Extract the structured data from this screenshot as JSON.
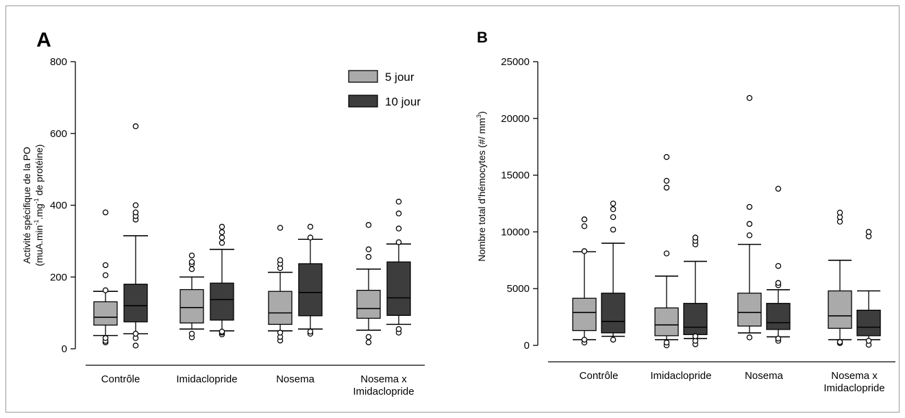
{
  "chart_data": [
    {
      "type": "boxplot",
      "panel_label": "A",
      "ylabel_line1": "Activité spécifique de la PO",
      "ylabel_line2_parts": [
        "(muA.min",
        "-1",
        ".mg",
        "-1",
        " de protéine)"
      ],
      "ylim": [
        0,
        800
      ],
      "yticks": [
        0,
        200,
        400,
        600,
        800
      ],
      "groups": [
        {
          "label": [
            "Contrôle"
          ]
        },
        {
          "label": [
            "Imidaclopride"
          ]
        },
        {
          "label": [
            "Nosema"
          ]
        },
        {
          "label": [
            "Nosema x",
            "Imidaclopride"
          ]
        }
      ],
      "legend": [
        {
          "name": "5 jour",
          "color": "#aaaaaa"
        },
        {
          "name": "10 jour",
          "color": "#3d3d3d"
        }
      ],
      "series": [
        {
          "name": "5 jour",
          "color": "#aaaaaa",
          "boxes": [
            {
              "whisker_low": 37,
              "q1": 66,
              "median": 88,
              "q3": 131,
              "whisker_high": 160,
              "outliers": [
                18,
                22,
                30,
                163,
                205,
                233,
                380
              ]
            },
            {
              "whisker_low": 55,
              "q1": 72,
              "median": 115,
              "q3": 165,
              "whisker_high": 200,
              "outliers": [
                32,
                42,
                222,
                236,
                242,
                260
              ]
            },
            {
              "whisker_low": 50,
              "q1": 68,
              "median": 100,
              "q3": 160,
              "whisker_high": 213,
              "outliers": [
                23,
                33,
                45,
                225,
                237,
                247,
                337
              ]
            },
            {
              "whisker_low": 52,
              "q1": 85,
              "median": 112,
              "q3": 163,
              "whisker_high": 222,
              "outliers": [
                18,
                33,
                256,
                277,
                345
              ]
            }
          ]
        },
        {
          "name": "10 jour",
          "color": "#3d3d3d",
          "boxes": [
            {
              "whisker_low": 42,
              "q1": 75,
              "median": 120,
              "q3": 180,
              "whisker_high": 315,
              "outliers": [
                9,
                30,
                42,
                360,
                370,
                380,
                400,
                620
              ]
            },
            {
              "whisker_low": 50,
              "q1": 80,
              "median": 137,
              "q3": 183,
              "whisker_high": 277,
              "outliers": [
                40,
                45,
                48,
                295,
                310,
                325,
                340
              ]
            },
            {
              "whisker_low": 55,
              "q1": 92,
              "median": 157,
              "q3": 237,
              "whisker_high": 305,
              "outliers": [
                42,
                48,
                310,
                340
              ]
            },
            {
              "whisker_low": 68,
              "q1": 93,
              "median": 142,
              "q3": 242,
              "whisker_high": 292,
              "outliers": [
                45,
                55,
                297,
                335,
                377,
                410
              ]
            }
          ]
        }
      ]
    },
    {
      "type": "boxplot",
      "panel_label": "B",
      "ylabel_parts": [
        "Nombre total d'hémocytes (#/ mm",
        "3",
        ")"
      ],
      "ylim": [
        0,
        25000
      ],
      "yticks": [
        0,
        5000,
        10000,
        15000,
        20000,
        25000
      ],
      "groups": [
        {
          "label": [
            "Contrôle"
          ]
        },
        {
          "label": [
            "Imidaclopride"
          ]
        },
        {
          "label": [
            "Nosema"
          ]
        },
        {
          "label": [
            "Nosema x",
            "Imidaclopride"
          ]
        }
      ],
      "series": [
        {
          "name": "5 jour",
          "color": "#aaaaaa",
          "boxes": [
            {
              "whisker_low": 500,
              "q1": 1300,
              "median": 2900,
              "q3": 4150,
              "whisker_high": 8250,
              "outliers": [
                250,
                500,
                8300,
                10500,
                11100
              ]
            },
            {
              "whisker_low": 500,
              "q1": 850,
              "median": 1800,
              "q3": 3300,
              "whisker_high": 6100,
              "outliers": [
                0,
                250,
                8100,
                13900,
                14500,
                16600
              ]
            },
            {
              "whisker_low": 1100,
              "q1": 1700,
              "median": 2900,
              "q3": 4600,
              "whisker_high": 8900,
              "outliers": [
                700,
                9700,
                10700,
                12200,
                21800
              ]
            },
            {
              "whisker_low": 500,
              "q1": 1500,
              "median": 2600,
              "q3": 4800,
              "whisker_high": 7500,
              "outliers": [
                200,
                300,
                10900,
                11300,
                11700
              ]
            }
          ]
        },
        {
          "name": "10 jour",
          "color": "#3d3d3d",
          "boxes": [
            {
              "whisker_low": 800,
              "q1": 1100,
              "median": 2100,
              "q3": 4600,
              "whisker_high": 9000,
              "outliers": [
                500,
                10200,
                11300,
                12000,
                12500
              ]
            },
            {
              "whisker_low": 600,
              "q1": 950,
              "median": 1600,
              "q3": 3700,
              "whisker_high": 7400,
              "outliers": [
                100,
                400,
                800,
                8900,
                9200,
                9500
              ]
            },
            {
              "whisker_low": 750,
              "q1": 1400,
              "median": 2000,
              "q3": 3700,
              "whisker_high": 4900,
              "outliers": [
                400,
                600,
                5300,
                5500,
                7000,
                13800
              ]
            },
            {
              "whisker_low": 500,
              "q1": 850,
              "median": 1600,
              "q3": 3100,
              "whisker_high": 4800,
              "outliers": [
                50,
                400,
                9600,
                10000
              ]
            }
          ]
        }
      ]
    }
  ]
}
